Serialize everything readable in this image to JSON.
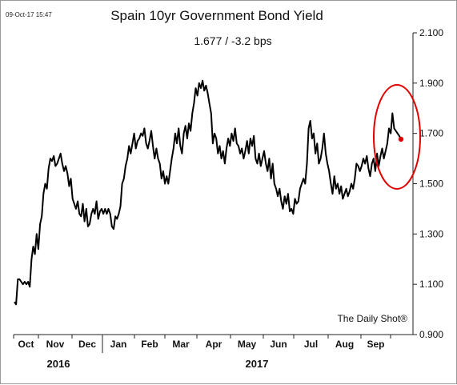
{
  "timestamp": "09-Oct-17 15:47",
  "colors": {
    "line": "#000000",
    "last_point": "#e00000",
    "highlight_ellipse": "#e00000",
    "axis": "#222222"
  },
  "chart_data": {
    "type": "line",
    "title": "Spain 10yr Government Bond Yield",
    "subtitle": "1.677  /  -3.2 bps",
    "watermark": "The Daily Shot®",
    "y_axis_position": "right",
    "ylim": [
      0.9,
      2.1
    ],
    "yticks": [
      "2.100",
      "1.900",
      "1.700",
      "1.500",
      "1.300",
      "1.100",
      "0.900"
    ],
    "grid": false,
    "x_month_labels": [
      "Oct",
      "Nov",
      "Dec",
      "Jan",
      "Feb",
      "Mar",
      "Apr",
      "May",
      "Jun",
      "Jul",
      "Aug",
      "Sep"
    ],
    "x_year_labels": [
      "2016",
      "2017"
    ],
    "last_point_value": 1.677,
    "highlight": "ellipse around the latest values (Sep–Oct 2017)",
    "series": [
      {
        "values": [
          1.03,
          1.02,
          1.12,
          1.12,
          1.11,
          1.1,
          1.11,
          1.1,
          1.11,
          1.09,
          1.2,
          1.25,
          1.22,
          1.3,
          1.24,
          1.34,
          1.37,
          1.46,
          1.5,
          1.48,
          1.56,
          1.6,
          1.59,
          1.61,
          1.57,
          1.58,
          1.6,
          1.62,
          1.58,
          1.55,
          1.57,
          1.54,
          1.49,
          1.52,
          1.44,
          1.42,
          1.4,
          1.43,
          1.38,
          1.37,
          1.42,
          1.35,
          1.4,
          1.33,
          1.34,
          1.38,
          1.4,
          1.38,
          1.43,
          1.36,
          1.39,
          1.4,
          1.38,
          1.4,
          1.38,
          1.4,
          1.38,
          1.33,
          1.32,
          1.37,
          1.36,
          1.38,
          1.41,
          1.5,
          1.52,
          1.57,
          1.6,
          1.65,
          1.62,
          1.66,
          1.7,
          1.64,
          1.67,
          1.68,
          1.7,
          1.69,
          1.72,
          1.66,
          1.64,
          1.67,
          1.71,
          1.65,
          1.6,
          1.64,
          1.6,
          1.58,
          1.52,
          1.55,
          1.5,
          1.53,
          1.5,
          1.55,
          1.6,
          1.64,
          1.7,
          1.66,
          1.72,
          1.65,
          1.62,
          1.7,
          1.73,
          1.68,
          1.74,
          1.71,
          1.78,
          1.82,
          1.88,
          1.85,
          1.9,
          1.88,
          1.91,
          1.87,
          1.89,
          1.86,
          1.82,
          1.78,
          1.66,
          1.7,
          1.68,
          1.62,
          1.65,
          1.6,
          1.63,
          1.58,
          1.64,
          1.68,
          1.65,
          1.7,
          1.67,
          1.72,
          1.66,
          1.65,
          1.62,
          1.64,
          1.6,
          1.63,
          1.67,
          1.62,
          1.68,
          1.65,
          1.69,
          1.6,
          1.58,
          1.62,
          1.57,
          1.6,
          1.63,
          1.58,
          1.55,
          1.6,
          1.52,
          1.58,
          1.5,
          1.48,
          1.45,
          1.48,
          1.43,
          1.4,
          1.45,
          1.42,
          1.46,
          1.39,
          1.4,
          1.38,
          1.44,
          1.42,
          1.43,
          1.48,
          1.5,
          1.52,
          1.5,
          1.58,
          1.72,
          1.75,
          1.68,
          1.7,
          1.62,
          1.66,
          1.58,
          1.6,
          1.64,
          1.7,
          1.62,
          1.58,
          1.55,
          1.5,
          1.46,
          1.53,
          1.48,
          1.5,
          1.46,
          1.49,
          1.44,
          1.46,
          1.48,
          1.45,
          1.47,
          1.5,
          1.48,
          1.52,
          1.58,
          1.57,
          1.55,
          1.57,
          1.6,
          1.58,
          1.61,
          1.56,
          1.53,
          1.58,
          1.6,
          1.55,
          1.62,
          1.57,
          1.61,
          1.64,
          1.6,
          1.63,
          1.66,
          1.72,
          1.7,
          1.78,
          1.72,
          1.71,
          1.7,
          1.69,
          1.677
        ]
      }
    ]
  }
}
